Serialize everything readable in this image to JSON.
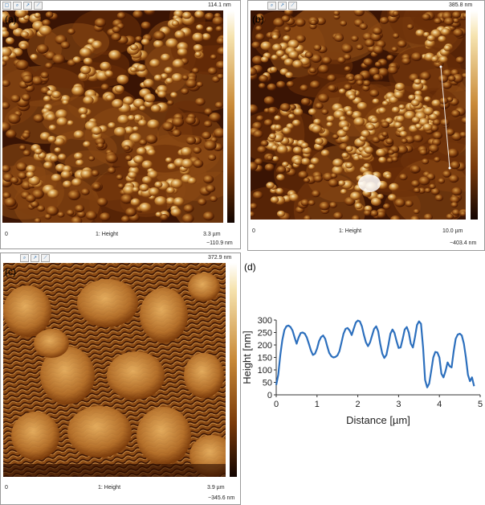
{
  "panels": {
    "a": {
      "label": "(a)",
      "zmax": "114.1 nm",
      "zmin": "−110.9 nm",
      "xstart": "0",
      "channel": "1: Height",
      "scan_size": "3.3 µm"
    },
    "b": {
      "label": "(b)",
      "zmax": "385.8 nm",
      "zmin": "−403.4 nm",
      "xstart": "0",
      "channel": "1: Height",
      "scan_size": "10.0 µm"
    },
    "c": {
      "label": "(c)",
      "zmax": "372.9 nm",
      "zmin": "−345.6 nm",
      "xstart": "0",
      "channel": "1: Height",
      "scan_size": "3.9 µm"
    },
    "d": {
      "label": "(d)"
    }
  },
  "toolbar_icons": [
    "window-icon",
    "zoom-icon",
    "arrow-icon",
    "line-icon"
  ],
  "colors": {
    "afm_dark": "#2a0c00",
    "afm_mid": "#b06420",
    "afm_light": "#f6e4b0",
    "profile_line": "#2c6fbd"
  },
  "chart_data": {
    "type": "line",
    "title": "",
    "xlabel": "Distance [µm]",
    "ylabel": "Height [nm]",
    "xlim": [
      0,
      5
    ],
    "ylim": [
      0,
      300
    ],
    "xticks": [
      0,
      1,
      2,
      3,
      4,
      5
    ],
    "yticks": [
      0,
      50,
      100,
      150,
      200,
      250,
      300
    ],
    "grid": false,
    "series": [
      {
        "x": [
          0.0,
          0.05,
          0.1,
          0.15,
          0.2,
          0.25,
          0.3,
          0.35,
          0.4,
          0.45,
          0.5,
          0.55,
          0.6,
          0.65,
          0.7,
          0.75,
          0.8,
          0.85,
          0.9,
          0.95,
          1.0,
          1.05,
          1.1,
          1.15,
          1.2,
          1.25,
          1.3,
          1.35,
          1.4,
          1.45,
          1.5,
          1.55,
          1.6,
          1.65,
          1.7,
          1.75,
          1.8,
          1.85,
          1.9,
          1.95,
          2.0,
          2.05,
          2.1,
          2.15,
          2.2,
          2.25,
          2.3,
          2.35,
          2.4,
          2.45,
          2.5,
          2.55,
          2.6,
          2.65,
          2.7,
          2.75,
          2.8,
          2.85,
          2.9,
          2.95,
          3.0,
          3.05,
          3.1,
          3.15,
          3.2,
          3.25,
          3.3,
          3.35,
          3.4,
          3.45,
          3.5,
          3.55,
          3.6,
          3.65,
          3.7,
          3.75,
          3.8,
          3.85,
          3.9,
          3.95,
          4.0,
          4.05,
          4.1,
          4.15,
          4.2,
          4.25,
          4.3,
          4.35,
          4.4,
          4.45,
          4.5,
          4.55,
          4.6,
          4.65,
          4.7,
          4.75,
          4.8,
          4.85
        ],
        "y": [
          40,
          80,
          160,
          220,
          260,
          275,
          278,
          272,
          258,
          230,
          205,
          230,
          248,
          250,
          245,
          230,
          205,
          178,
          160,
          165,
          185,
          215,
          232,
          238,
          225,
          195,
          168,
          155,
          150,
          152,
          158,
          175,
          210,
          245,
          265,
          268,
          258,
          240,
          265,
          290,
          298,
          295,
          275,
          240,
          210,
          195,
          210,
          238,
          265,
          275,
          255,
          205,
          165,
          148,
          160,
          200,
          245,
          262,
          248,
          215,
          188,
          190,
          225,
          262,
          272,
          250,
          205,
          190,
          230,
          280,
          295,
          285,
          190,
          60,
          30,
          45,
          95,
          150,
          172,
          170,
          150,
          85,
          70,
          95,
          130,
          115,
          110,
          175,
          225,
          242,
          245,
          238,
          205,
          150,
          80,
          55,
          70,
          35
        ]
      }
    ]
  }
}
